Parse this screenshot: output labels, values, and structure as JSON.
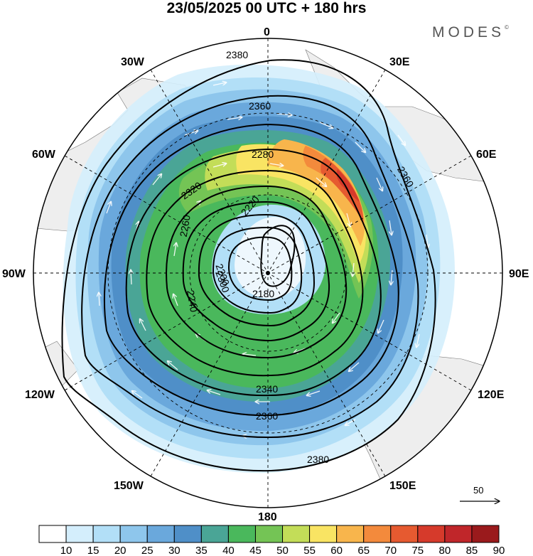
{
  "title": "23/05/2025  00 UTC  + 180 hrs",
  "brand": {
    "name": "MODES",
    "mark": "©"
  },
  "longitude_labels": {
    "n": "0",
    "ne": "30E",
    "ene": "60E",
    "e": "90E",
    "ese": "120E",
    "sse": "150E",
    "s": "180",
    "ssw": "150W",
    "wsw": "120W",
    "w": "90W",
    "wnw": "60W",
    "nnw": "30W"
  },
  "contour_labels": [
    "2380",
    "2360",
    "2340",
    "2320",
    "2300",
    "2280",
    "2260",
    "2240",
    "2220",
    "2200",
    "2180"
  ],
  "reference_vector": {
    "label": "50"
  },
  "colorbar": {
    "labels": [
      "10",
      "15",
      "20",
      "25",
      "30",
      "35",
      "40",
      "45",
      "50",
      "55",
      "60",
      "65",
      "70",
      "75",
      "80",
      "85",
      "90"
    ],
    "colors": [
      "#ffffff",
      "#d4eefc",
      "#b2dff7",
      "#8ec6ec",
      "#6aa8dc",
      "#4f8fc8",
      "#4aa596",
      "#4ab85c",
      "#74c455",
      "#c3dd58",
      "#f9e463",
      "#f8b54c",
      "#f38a3c",
      "#e65a30",
      "#d63a2b",
      "#c0262a",
      "#9a1a1c"
    ]
  }
}
